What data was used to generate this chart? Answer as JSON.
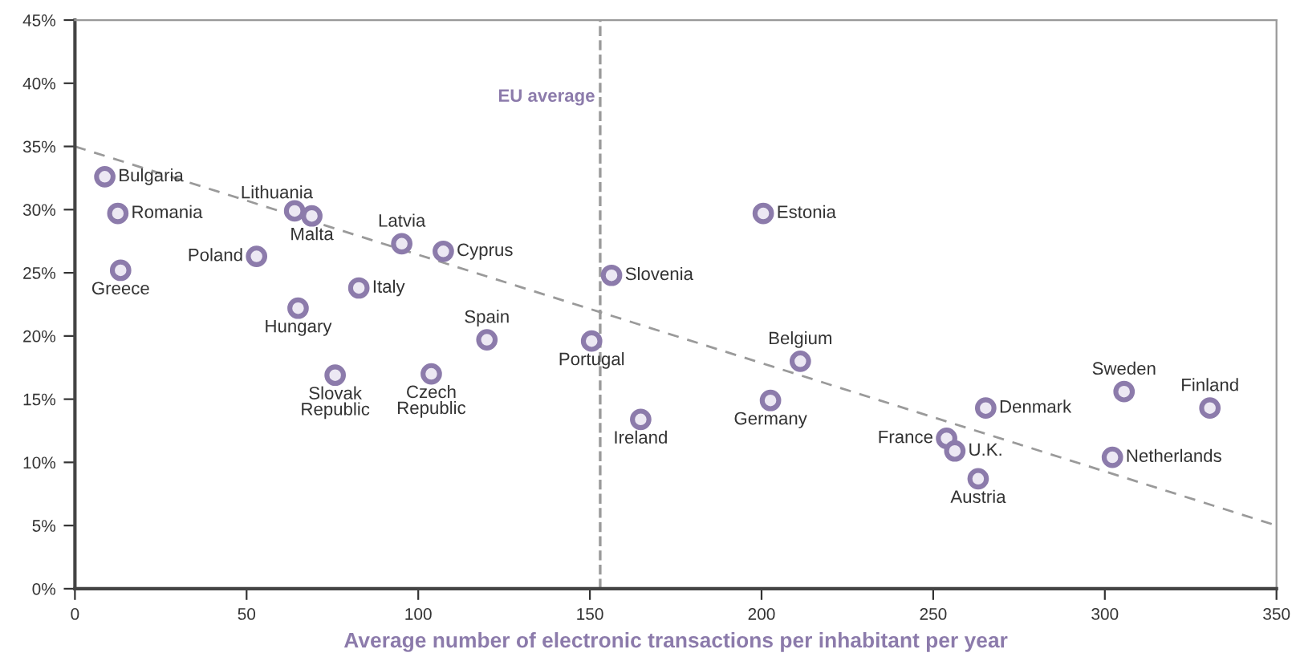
{
  "chart_data": {
    "type": "scatter",
    "xlabel": "Average number of electronic transactions per inhabitant per year",
    "xlim": [
      0,
      350
    ],
    "xticks": [
      0,
      50,
      100,
      150,
      200,
      250,
      300,
      350
    ],
    "ylim": [
      0,
      45
    ],
    "yticks": [
      {
        "value": 0,
        "label": "0%"
      },
      {
        "value": 5,
        "label": "5%"
      },
      {
        "value": 10,
        "label": "10%"
      },
      {
        "value": 15,
        "label": "15%"
      },
      {
        "value": 20,
        "label": "20%"
      },
      {
        "value": 25,
        "label": "25%"
      },
      {
        "value": 30,
        "label": "30%"
      },
      {
        "value": 35,
        "label": "35%"
      },
      {
        "value": 40,
        "label": "40%"
      },
      {
        "value": 45,
        "label": "45%"
      }
    ],
    "grid": false,
    "legend": false,
    "marker": "circle",
    "series": [
      {
        "type": "line",
        "color": "#9a9a9a",
        "line_style": "dashed",
        "marker": "none",
        "x": [
          0,
          350
        ],
        "values": [
          35,
          5
        ]
      },
      {
        "color": "#8c7bab",
        "x": [
          8.7,
          12.5,
          13.3,
          52.9,
          64,
          69,
          65,
          82.7,
          95.2,
          107.3,
          75.8,
          103.8,
          120,
          150.5,
          156.3,
          164.8,
          200.5,
          211.3,
          202.6,
          253.9,
          256.3,
          263.1,
          265.3,
          305.6,
          330.6,
          302.2
        ],
        "values": [
          32.6,
          29.7,
          25.2,
          26.3,
          29.9,
          29.5,
          22.2,
          23.8,
          27.3,
          26.7,
          16.9,
          17,
          19.7,
          19.6,
          24.8,
          13.4,
          29.7,
          18,
          14.9,
          11.9,
          10.9,
          8.7,
          14.3,
          15.6,
          14.3,
          10.4
        ]
      }
    ],
    "ref_lines": [
      {
        "axis": "x",
        "value": 153,
        "label": "EU average",
        "color": "#9a9a9a",
        "line_style": "dashed"
      }
    ],
    "annotations": [
      {
        "text": "Bulgaria",
        "x": 8.7,
        "y": 32.6
      },
      {
        "text": "Romania",
        "x": 12.5,
        "y": 29.7
      },
      {
        "text": "Greece",
        "x": 13.3,
        "y": 25.2
      },
      {
        "text": "Poland",
        "x": 52.9,
        "y": 26.3
      },
      {
        "text": "Lithuania",
        "x": 64,
        "y": 29.9
      },
      {
        "text": "Malta",
        "x": 69,
        "y": 29.5
      },
      {
        "text": "Hungary",
        "x": 65,
        "y": 22.2
      },
      {
        "text": "Italy",
        "x": 82.7,
        "y": 23.8
      },
      {
        "text": "Latvia",
        "x": 95.2,
        "y": 27.3
      },
      {
        "text": "Cyprus",
        "x": 107.3,
        "y": 26.7
      },
      {
        "text": "Slovak\nRepublic",
        "x": 75.8,
        "y": 16.9
      },
      {
        "text": "Czech\nRepublic",
        "x": 103.8,
        "y": 17
      },
      {
        "text": "Spain",
        "x": 120,
        "y": 19.7
      },
      {
        "text": "Portugal",
        "x": 150.5,
        "y": 19.6
      },
      {
        "text": "Slovenia",
        "x": 156.3,
        "y": 24.8
      },
      {
        "text": "Ireland",
        "x": 164.8,
        "y": 13.4
      },
      {
        "text": "Estonia",
        "x": 200.5,
        "y": 29.7
      },
      {
        "text": "Belgium",
        "x": 211.3,
        "y": 18
      },
      {
        "text": "Germany",
        "x": 202.6,
        "y": 14.9
      },
      {
        "text": "France",
        "x": 253.9,
        "y": 11.9
      },
      {
        "text": "U.K.",
        "x": 256.3,
        "y": 10.9
      },
      {
        "text": "Austria",
        "x": 263.1,
        "y": 8.7
      },
      {
        "text": "Denmark",
        "x": 265.3,
        "y": 14.3
      },
      {
        "text": "Sweden",
        "x": 305.6,
        "y": 15.6
      },
      {
        "text": "Finland",
        "x": 330.6,
        "y": 14.3
      },
      {
        "text": "Netherlands",
        "x": 302.2,
        "y": 10.4
      }
    ]
  }
}
